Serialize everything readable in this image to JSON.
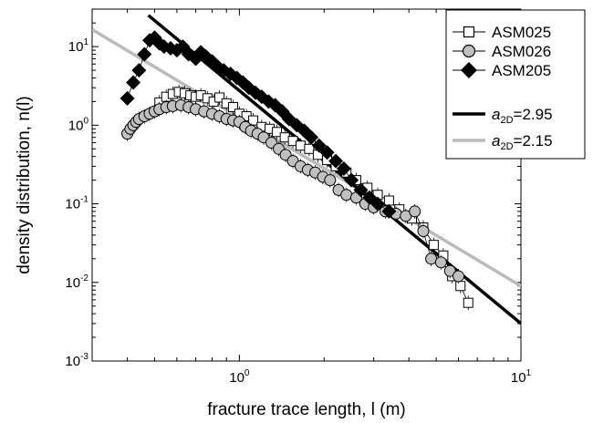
{
  "chart_data": {
    "type": "scatter",
    "title": "",
    "xlabel": "fracture trace length, l (m)",
    "ylabel": "density distribution, n(l)",
    "x_scale": "log",
    "y_scale": "log",
    "xlim": [
      0.3,
      10
    ],
    "ylim": [
      0.001,
      30
    ],
    "grid": false,
    "legend_position": "top-right",
    "x_tick_labels": [
      {
        "base": "10",
        "exp": "0",
        "value": 1
      },
      {
        "base": "10",
        "exp": "1",
        "value": 10
      }
    ],
    "y_tick_labels": [
      {
        "base": "10",
        "exp": "-3",
        "value": 0.001
      },
      {
        "base": "10",
        "exp": "-2",
        "value": 0.01
      },
      {
        "base": "10",
        "exp": "-1",
        "value": 0.1
      },
      {
        "base": "10",
        "exp": "0",
        "value": 1
      },
      {
        "base": "10",
        "exp": "1",
        "value": 10
      }
    ],
    "series": [
      {
        "name": "ASM025",
        "marker": "square-open",
        "color": "#000000",
        "fill": "#ffffff",
        "points": [
          [
            0.52,
            1.95
          ],
          [
            0.55,
            2.3
          ],
          [
            0.58,
            2.5
          ],
          [
            0.61,
            2.65
          ],
          [
            0.64,
            2.55
          ],
          [
            0.67,
            2.4
          ],
          [
            0.7,
            2.3
          ],
          [
            0.73,
            2.4
          ],
          [
            0.77,
            2.2
          ],
          [
            0.81,
            2.0
          ],
          [
            0.85,
            2.25
          ],
          [
            0.9,
            1.9
          ],
          [
            0.95,
            1.7
          ],
          [
            1.0,
            1.4
          ],
          [
            1.06,
            1.3
          ],
          [
            1.12,
            1.15
          ],
          [
            1.2,
            0.95
          ],
          [
            1.28,
            0.9
          ],
          [
            1.36,
            0.82
          ],
          [
            1.45,
            0.7
          ],
          [
            1.55,
            0.63
          ],
          [
            1.65,
            0.55
          ],
          [
            1.77,
            0.5
          ],
          [
            1.9,
            0.42
          ],
          [
            2.05,
            0.36
          ],
          [
            2.2,
            0.3
          ],
          [
            2.4,
            0.25
          ],
          [
            2.6,
            0.2
          ],
          [
            2.85,
            0.16
          ],
          [
            3.1,
            0.13
          ],
          [
            3.4,
            0.11
          ],
          [
            3.7,
            0.085
          ],
          [
            4.1,
            0.065
          ],
          [
            4.5,
            0.05
          ],
          [
            4.9,
            0.03
          ],
          [
            5.3,
            0.022
          ],
          [
            5.7,
            0.012
          ],
          [
            6.1,
            0.009
          ],
          [
            6.5,
            0.0055
          ]
        ]
      },
      {
        "name": "ASM026",
        "marker": "circle",
        "color": "#000000",
        "fill": "#c0c0c0",
        "points": [
          [
            0.4,
            0.78
          ],
          [
            0.41,
            0.9
          ],
          [
            0.42,
            1.0
          ],
          [
            0.43,
            1.1
          ],
          [
            0.44,
            1.2
          ],
          [
            0.46,
            1.3
          ],
          [
            0.48,
            1.4
          ],
          [
            0.5,
            1.5
          ],
          [
            0.52,
            1.6
          ],
          [
            0.55,
            1.7
          ],
          [
            0.58,
            1.75
          ],
          [
            0.62,
            1.8
          ],
          [
            0.66,
            1.7
          ],
          [
            0.7,
            1.6
          ],
          [
            0.75,
            1.5
          ],
          [
            0.8,
            1.4
          ],
          [
            0.85,
            1.3
          ],
          [
            0.9,
            1.2
          ],
          [
            0.95,
            1.15
          ],
          [
            1.0,
            1.1
          ],
          [
            1.05,
            0.95
          ],
          [
            1.1,
            0.85
          ],
          [
            1.16,
            0.78
          ],
          [
            1.22,
            0.7
          ],
          [
            1.3,
            0.6
          ],
          [
            1.38,
            0.5
          ],
          [
            1.46,
            0.42
          ],
          [
            1.55,
            0.35
          ],
          [
            1.65,
            0.3
          ],
          [
            1.75,
            0.27
          ],
          [
            1.86,
            0.25
          ],
          [
            1.98,
            0.22
          ],
          [
            2.1,
            0.2
          ],
          [
            2.25,
            0.15
          ],
          [
            2.4,
            0.13
          ],
          [
            2.6,
            0.12
          ],
          [
            2.8,
            0.1
          ],
          [
            3.0,
            0.09
          ],
          [
            3.3,
            0.08
          ],
          [
            3.6,
            0.075
          ],
          [
            3.9,
            0.07
          ],
          [
            4.2,
            0.08
          ],
          [
            4.5,
            0.045
          ],
          [
            4.8,
            0.02
          ],
          [
            5.2,
            0.018
          ],
          [
            5.6,
            0.014
          ],
          [
            6.0,
            0.012
          ]
        ]
      },
      {
        "name": "ASM205",
        "marker": "diamond",
        "color": "#000000",
        "fill": "#000000",
        "points": [
          [
            0.4,
            2.2
          ],
          [
            0.42,
            3.5
          ],
          [
            0.44,
            5.0
          ],
          [
            0.46,
            8.0
          ],
          [
            0.48,
            12.0
          ],
          [
            0.5,
            13.0
          ],
          [
            0.52,
            11.0
          ],
          [
            0.54,
            10.0
          ],
          [
            0.57,
            9.5
          ],
          [
            0.6,
            9.0
          ],
          [
            0.63,
            10.0
          ],
          [
            0.66,
            8.0
          ],
          [
            0.7,
            7.0
          ],
          [
            0.73,
            8.5
          ],
          [
            0.76,
            7.5
          ],
          [
            0.8,
            6.5
          ],
          [
            0.84,
            5.5
          ],
          [
            0.88,
            5.0
          ],
          [
            0.93,
            4.5
          ],
          [
            0.98,
            4.0
          ],
          [
            1.03,
            3.5
          ],
          [
            1.08,
            3.0
          ],
          [
            1.14,
            2.6
          ],
          [
            1.2,
            2.3
          ],
          [
            1.27,
            2.0
          ],
          [
            1.34,
            1.8
          ],
          [
            1.42,
            1.5
          ],
          [
            1.5,
            1.2
          ],
          [
            1.6,
            1.0
          ],
          [
            1.7,
            0.85
          ],
          [
            1.8,
            0.7
          ],
          [
            1.92,
            0.55
          ],
          [
            2.05,
            0.45
          ],
          [
            2.2,
            0.35
          ],
          [
            2.35,
            0.28
          ],
          [
            2.5,
            0.2
          ],
          [
            2.7,
            0.15
          ],
          [
            2.9,
            0.12
          ],
          [
            3.1,
            0.1
          ],
          [
            3.4,
            0.08
          ]
        ]
      }
    ],
    "fits": [
      {
        "name": "a2D=2.95",
        "label_main": "a",
        "label_sub": "2D",
        "label_value": "=2.95",
        "exponent": 2.95,
        "color": "#000000",
        "line_width": 3.5,
        "points": [
          [
            0.475,
            25.0
          ],
          [
            10,
            0.003
          ]
        ]
      },
      {
        "name": "a2D=2.15",
        "label_main": "a",
        "label_sub": "2D",
        "label_value": "=2.15",
        "exponent": 2.15,
        "color": "#bbbbbb",
        "line_width": 3.5,
        "points": [
          [
            0.3,
            16.5
          ],
          [
            10,
            0.009
          ]
        ]
      }
    ]
  }
}
